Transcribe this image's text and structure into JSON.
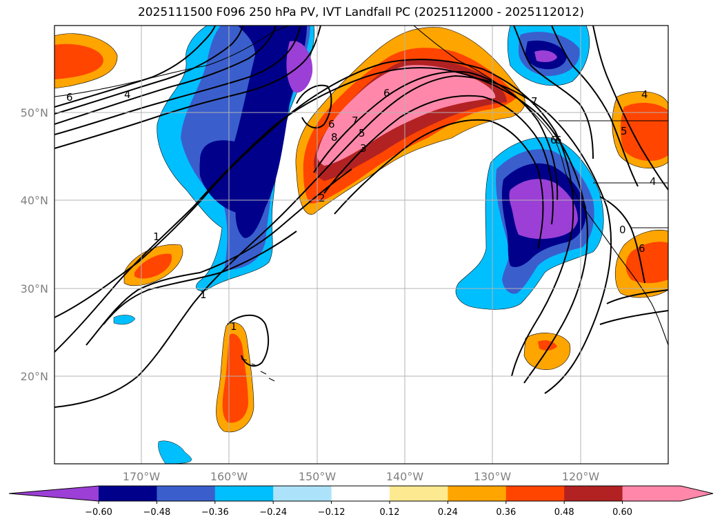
{
  "title": "2025111500 F096 250 hPa PV, IVT Landfall PC (2025112000 - 2025112012)",
  "lat_ticks": [
    "50°N",
    "40°N",
    "30°N",
    "20°N"
  ],
  "lon_ticks": [
    "170°W",
    "160°W",
    "150°W",
    "140°W",
    "130°W",
    "120°W"
  ],
  "colorbar": {
    "labels": [
      "−0.60",
      "−0.48",
      "−0.36",
      "−0.24",
      "−0.12",
      "0.12",
      "0.24",
      "0.36",
      "0.48",
      "0.60"
    ],
    "colors": [
      "#9b3fd6",
      "#00008b",
      "#3a5fcd",
      "#00bfff",
      "#ade3fa",
      "#ffffff",
      "#fde98f",
      "#ffa500",
      "#ff4500",
      "#b22222",
      "#ff88aa",
      "#ff88aa"
    ]
  },
  "contour_labels": [
    "6",
    "4",
    "1",
    "1",
    "1",
    "2",
    "3",
    "5",
    "7",
    "6",
    "8",
    "6",
    "7",
    "6",
    "6",
    "4",
    "5",
    "4",
    "0",
    "6"
  ],
  "colors": {
    "purple": "#9b3fd6",
    "navy": "#00008b",
    "royal": "#3a5fcd",
    "sky": "#00bfff",
    "orange": "#ffa500",
    "redorange": "#ff4500",
    "firebrick": "#b22222",
    "pink": "#ff88aa"
  }
}
